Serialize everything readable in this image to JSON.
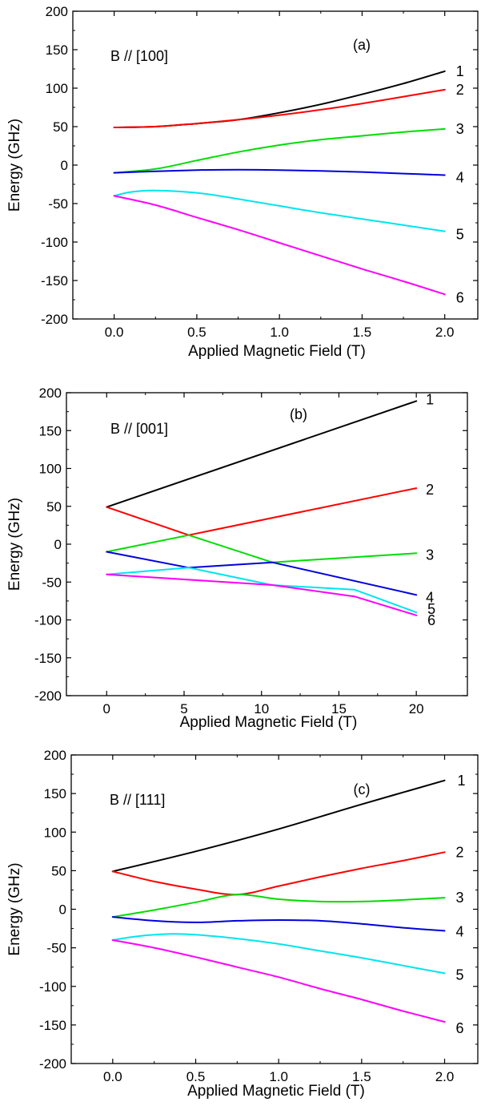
{
  "chart_data": [
    {
      "type": "line",
      "panel_label": "(a)",
      "annotation": "B // [100]",
      "xlabel": "Applied Magnetic Field (T)",
      "ylabel": "Energy (GHz)",
      "xlim": [
        -0.25,
        2.2
      ],
      "ylim": [
        -200,
        200
      ],
      "x_ticks": [
        0.0,
        0.5,
        1.0,
        1.5,
        2.0
      ],
      "x_tick_labels": [
        "0.0",
        "0.5",
        "1.0",
        "1.5",
        "2.0"
      ],
      "y_ticks": [
        -200,
        -150,
        -100,
        -50,
        0,
        50,
        100,
        150,
        200
      ],
      "y_tick_labels": [
        "-200",
        "-150",
        "-100",
        "-50",
        "0",
        "50",
        "100",
        "150",
        "200"
      ],
      "grid": false,
      "legend": "none",
      "series": [
        {
          "label": "1",
          "color": "#000000",
          "x": [
            0,
            0.25,
            0.5,
            0.75,
            1.0,
            1.25,
            1.5,
            1.75,
            2.0
          ],
          "y": [
            49,
            50,
            54,
            59,
            68,
            79,
            92,
            106,
            122
          ]
        },
        {
          "label": "2",
          "color": "#ff0000",
          "x": [
            0,
            0.25,
            0.5,
            0.75,
            1.0,
            1.25,
            1.5,
            1.75,
            2.0
          ],
          "y": [
            49,
            50,
            54,
            59,
            65,
            72,
            80,
            89,
            98
          ]
        },
        {
          "label": "3",
          "color": "#00dd00",
          "x": [
            0,
            0.25,
            0.5,
            0.75,
            1.0,
            1.25,
            1.5,
            1.75,
            2.0
          ],
          "y": [
            -10,
            -5,
            6,
            17,
            26,
            33,
            38,
            43,
            47
          ]
        },
        {
          "label": "4",
          "color": "#0000dd",
          "x": [
            0,
            0.25,
            0.5,
            0.75,
            1.0,
            1.25,
            1.5,
            1.75,
            2.0
          ],
          "y": [
            -10,
            -8,
            -6.5,
            -6,
            -6.5,
            -7.5,
            -9,
            -11,
            -13
          ]
        },
        {
          "label": "5",
          "color": "#00e5ee",
          "x": [
            0,
            0.1,
            0.25,
            0.5,
            0.75,
            1.0,
            1.25,
            1.5,
            1.75,
            2.0
          ],
          "y": [
            -40,
            -35,
            -33,
            -36,
            -44,
            -53,
            -62,
            -70,
            -78,
            -86
          ]
        },
        {
          "label": "6",
          "color": "#ff00ff",
          "x": [
            0,
            0.25,
            0.5,
            0.75,
            1.0,
            1.25,
            1.5,
            1.75,
            2.0
          ],
          "y": [
            -40,
            -52,
            -68,
            -84,
            -101,
            -118,
            -135,
            -151,
            -168
          ]
        }
      ]
    },
    {
      "type": "line",
      "panel_label": "(b)",
      "annotation": "B // [001]",
      "xlabel": "Applied Magnetic Field (T)",
      "ylabel": "Energy (GHz)",
      "xlim": [
        -2.6,
        23.3
      ],
      "ylim": [
        -200,
        200
      ],
      "x_ticks": [
        0,
        5,
        10,
        15,
        20
      ],
      "x_tick_labels": [
        "0",
        "5",
        "10",
        "15",
        "20"
      ],
      "y_ticks": [
        -200,
        -150,
        -100,
        -50,
        0,
        50,
        100,
        150,
        200
      ],
      "y_tick_labels": [
        "-200",
        "-150",
        "-100",
        "-50",
        "0",
        "50",
        "100",
        "150",
        "200"
      ],
      "grid": false,
      "legend": "none",
      "series": [
        {
          "label": "1",
          "color": "#000000",
          "x": [
            0,
            20
          ],
          "y": [
            49,
            189
          ]
        },
        {
          "label": "2",
          "color": "#ff0000",
          "x": [
            0,
            5.3,
            20
          ],
          "y": [
            49,
            12,
            74
          ]
        },
        {
          "label": "3",
          "color": "#00dd00",
          "x": [
            0,
            5.3,
            10.7,
            20
          ],
          "y": [
            -10,
            12,
            -24,
            -12
          ]
        },
        {
          "label": "4",
          "color": "#0000dd",
          "x": [
            0,
            5.3,
            10.7,
            20
          ],
          "y": [
            -10,
            -31,
            -24,
            -67
          ]
        },
        {
          "label": "5",
          "color": "#00e5ee",
          "x": [
            0,
            5.3,
            10.7,
            16,
            20
          ],
          "y": [
            -40,
            -31,
            -54,
            -60,
            -90
          ]
        },
        {
          "label": "6",
          "color": "#ff00ff",
          "x": [
            0,
            10.7,
            16,
            20
          ],
          "y": [
            -40,
            -54,
            -69,
            -94
          ]
        }
      ]
    },
    {
      "type": "line",
      "panel_label": "(c)",
      "annotation": "B // [111]",
      "xlabel": "Applied Magnetic Field (T)",
      "ylabel": "Energy (GHz)",
      "xlim": [
        -0.25,
        2.2
      ],
      "ylim": [
        -200,
        200
      ],
      "x_ticks": [
        0.0,
        0.5,
        1.0,
        1.5,
        2.0
      ],
      "x_tick_labels": [
        "0.0",
        "0.5",
        "1.0",
        "1.5",
        "2.0"
      ],
      "y_ticks": [
        -200,
        -150,
        -100,
        -50,
        0,
        50,
        100,
        150,
        200
      ],
      "y_tick_labels": [
        "-200",
        "-150",
        "-100",
        "-50",
        "0",
        "50",
        "100",
        "150",
        "200"
      ],
      "grid": false,
      "legend": "none",
      "series": [
        {
          "label": "1",
          "color": "#000000",
          "x": [
            0,
            0.5,
            1.0,
            1.5,
            2.0
          ],
          "y": [
            49,
            75,
            104,
            136,
            167
          ]
        },
        {
          "label": "2",
          "color": "#ff0000",
          "x": [
            0,
            0.25,
            0.5,
            0.75,
            1.0,
            1.25,
            1.5,
            1.75,
            2.0
          ],
          "y": [
            49,
            36,
            26,
            19,
            30,
            42,
            53,
            63,
            74
          ]
        },
        {
          "label": "3",
          "color": "#00dd00",
          "x": [
            0,
            0.25,
            0.5,
            0.75,
            1.0,
            1.25,
            1.5,
            1.75,
            2.0
          ],
          "y": [
            -10,
            -1,
            9,
            19,
            13,
            10,
            10,
            12,
            15
          ]
        },
        {
          "label": "4",
          "color": "#0000dd",
          "x": [
            0,
            0.25,
            0.5,
            0.75,
            1.0,
            1.25,
            1.5,
            1.75,
            2.0
          ],
          "y": [
            -10,
            -15,
            -17,
            -15,
            -14,
            -15,
            -19,
            -24,
            -28
          ]
        },
        {
          "label": "5",
          "color": "#00e5ee",
          "x": [
            0,
            0.15,
            0.35,
            0.5,
            0.75,
            1.0,
            1.25,
            1.5,
            1.75,
            2.0
          ],
          "y": [
            -40,
            -35,
            -32,
            -33,
            -38,
            -45,
            -54,
            -63,
            -73,
            -83
          ]
        },
        {
          "label": "6",
          "color": "#ff00ff",
          "x": [
            0,
            0.25,
            0.5,
            0.75,
            1.0,
            1.25,
            1.5,
            1.75,
            2.0
          ],
          "y": [
            -40,
            -50,
            -62,
            -75,
            -88,
            -103,
            -117,
            -132,
            -146
          ]
        }
      ]
    }
  ]
}
